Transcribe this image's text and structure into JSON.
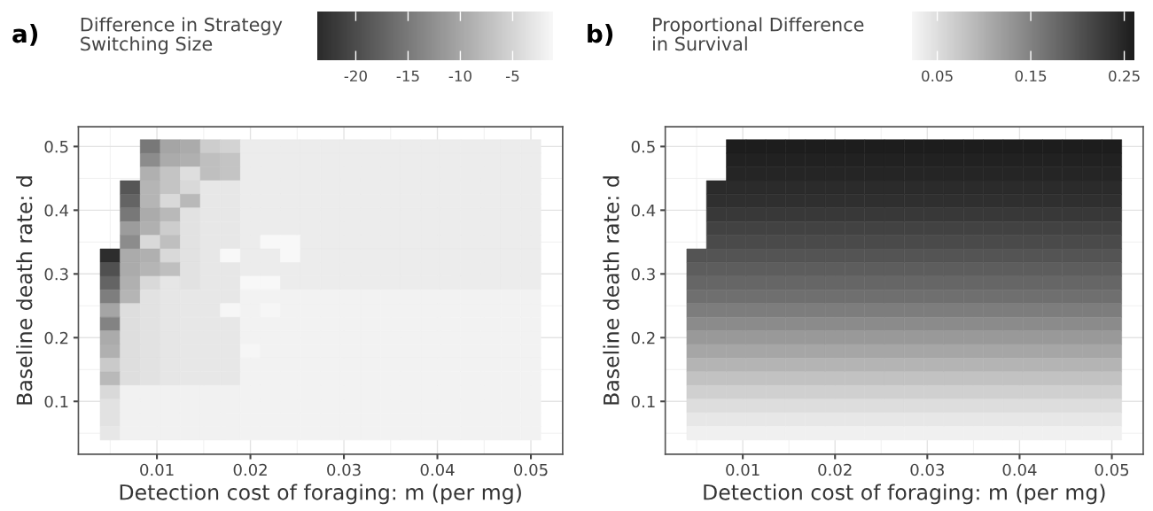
{
  "chart_data": [
    {
      "type": "heatmap",
      "title": "a)",
      "clabel": "Difference in Strategy\nSwitching Size",
      "xlabel": "Detection cost of foraging: m (per mg)",
      "ylabel": "Baseline death rate: d",
      "x": [
        0.005,
        0.00714,
        0.00929,
        0.01143,
        0.01357,
        0.01571,
        0.01786,
        0.02,
        0.02214,
        0.02429,
        0.02643,
        0.02857,
        0.03071,
        0.03286,
        0.035,
        0.03714,
        0.03929,
        0.04143,
        0.04357,
        0.04571,
        0.04786,
        0.05
      ],
      "y": [
        0.5,
        0.4786,
        0.4571,
        0.4357,
        0.4143,
        0.3929,
        0.3714,
        0.35,
        0.3286,
        0.3071,
        0.2857,
        0.2643,
        0.2429,
        0.2214,
        0.2,
        0.1786,
        0.1571,
        0.1357,
        0.1143,
        0.0929,
        0.0714,
        0.05
      ],
      "cells": [
        [
          null,
          null,
          -15.2,
          -10.2,
          -9.6,
          -5.8,
          -5.2,
          -2.5,
          -2.5,
          -2.5,
          -2.5,
          -2.5,
          -2.5,
          -2.5,
          -2.5,
          -2.5,
          -2.5,
          -2.5,
          -2.5,
          -2.5,
          -2.5,
          -2.5
        ],
        [
          null,
          null,
          -13,
          -9.6,
          -9,
          -7.4,
          -6.9,
          -2.5,
          -2.5,
          -2.5,
          -2.5,
          -2.5,
          -2.5,
          -2.5,
          -2.5,
          -2.5,
          -2.5,
          -2.5,
          -2.5,
          -2.5,
          -2.5,
          -2.5
        ],
        [
          null,
          null,
          -9,
          -6.9,
          -4,
          -7.4,
          -6.9,
          -2.5,
          -2.5,
          -2.5,
          -2.5,
          -2.5,
          -2.5,
          -2.5,
          -2.5,
          -2.5,
          -2.5,
          -2.5,
          -2.5,
          -2.5,
          -2.5,
          -2.5
        ],
        [
          null,
          -19,
          -8.5,
          -6.9,
          -4.6,
          -3,
          -3,
          -2.5,
          -2.5,
          -2.5,
          -2.5,
          -2.5,
          -2.5,
          -2.5,
          -2.5,
          -2.5,
          -2.5,
          -2.5,
          -2.5,
          -2.5,
          -2.5,
          -2.5
        ],
        [
          null,
          -17.4,
          -8.5,
          -4.6,
          -8,
          -3,
          -3,
          -2.5,
          -2.5,
          -2.5,
          -2.5,
          -2.5,
          -2.5,
          -2.5,
          -2.5,
          -2.5,
          -2.5,
          -2.5,
          -2.5,
          -2.5,
          -2.5,
          -2.5
        ],
        [
          null,
          -15.2,
          -9.6,
          -8,
          -3.5,
          -3,
          -3,
          -2.5,
          -2.5,
          -2.5,
          -2.5,
          -2.5,
          -2.5,
          -2.5,
          -2.5,
          -2.5,
          -2.5,
          -2.5,
          -2.5,
          -2.5,
          -2.5,
          -2.5
        ],
        [
          null,
          -11.3,
          -9,
          -5.8,
          -3.5,
          -3,
          -3,
          -2.5,
          -2.5,
          -2.5,
          -2.5,
          -2.5,
          -2.5,
          -2.5,
          -2.5,
          -2.5,
          -2.5,
          -2.5,
          -2.5,
          -2.5,
          -2.5,
          -2.5
        ],
        [
          null,
          -13,
          -4.6,
          -7.4,
          -3.5,
          -3,
          -3,
          -2.5,
          -1.1,
          -1.1,
          -2.5,
          -2.5,
          -2.5,
          -2.5,
          -2.5,
          -2.5,
          -2.5,
          -2.5,
          -2.5,
          -2.5,
          -2.5,
          -2.5
        ],
        [
          -23.5,
          -9.6,
          -9,
          -4.6,
          -3.5,
          -3,
          -1.1,
          -2.5,
          -2.5,
          -1.1,
          -2.5,
          -2.5,
          -2.5,
          -2.5,
          -2.5,
          -2.5,
          -2.5,
          -2.5,
          -2.5,
          -2.5,
          -2.5,
          -2.5
        ],
        [
          -19.6,
          -9.6,
          -8.5,
          -7.4,
          -3.5,
          -3,
          -3,
          -2.5,
          -2.5,
          -2.5,
          -2.5,
          -2.5,
          -2.5,
          -2.5,
          -2.5,
          -2.5,
          -2.5,
          -2.5,
          -2.5,
          -2.5,
          -2.5,
          -2.5
        ],
        [
          -17.4,
          -9,
          -4.6,
          -3.2,
          -3.5,
          -3,
          -3,
          -1.1,
          -1.1,
          -2.5,
          -2.5,
          -2.5,
          -2.5,
          -2.5,
          -2.5,
          -2.5,
          -2.5,
          -2.5,
          -2.5,
          -2.5,
          -2.5,
          -2.5
        ],
        [
          -14.6,
          -8.5,
          -3.5,
          -3.2,
          -3,
          -3,
          -3,
          -1.8,
          -1.8,
          -1.8,
          -1.8,
          -1.8,
          -1.8,
          -1.8,
          -1.8,
          -1.8,
          -1.8,
          -1.8,
          -1.8,
          -1.8,
          -1.8,
          -1.8
        ],
        [
          -10.2,
          -4,
          -3.5,
          -3.2,
          -3,
          -3,
          -1.3,
          -1.8,
          -1.3,
          -1.8,
          -1.8,
          -1.8,
          -1.8,
          -1.8,
          -1.8,
          -1.8,
          -1.8,
          -1.8,
          -1.8,
          -1.8,
          -1.8,
          -1.8
        ],
        [
          -14,
          -4,
          -3.5,
          -3.2,
          -3,
          -3,
          -3,
          -1.8,
          -1.8,
          -1.8,
          -1.8,
          -1.8,
          -1.8,
          -1.8,
          -1.8,
          -1.8,
          -1.8,
          -1.8,
          -1.8,
          -1.8,
          -1.8,
          -1.8
        ],
        [
          -9.6,
          -4,
          -3.5,
          -3.2,
          -3,
          -3,
          -3,
          -1.8,
          -1.8,
          -1.8,
          -1.8,
          -1.8,
          -1.8,
          -1.8,
          -1.8,
          -1.8,
          -1.8,
          -1.8,
          -1.8,
          -1.8,
          -1.8,
          -1.8
        ],
        [
          -9,
          -4,
          -3.5,
          -3.2,
          -3,
          -3,
          -3,
          -1.3,
          -1.8,
          -1.8,
          -1.8,
          -1.8,
          -1.8,
          -1.8,
          -1.8,
          -1.8,
          -1.8,
          -1.8,
          -1.8,
          -1.8,
          -1.8,
          -1.8
        ],
        [
          -6.2,
          -4,
          -3.5,
          -3.2,
          -3,
          -3,
          -3,
          -1.8,
          -1.8,
          -1.8,
          -1.8,
          -1.8,
          -1.8,
          -1.8,
          -1.8,
          -1.8,
          -1.8,
          -1.8,
          -1.8,
          -1.8,
          -1.8,
          -1.8
        ],
        [
          -8,
          -4,
          -3.5,
          -3.2,
          -3,
          -3,
          -3,
          -1.8,
          -1.8,
          -1.8,
          -1.8,
          -1.8,
          -1.8,
          -1.8,
          -1.8,
          -1.8,
          -1.8,
          -1.8,
          -1.8,
          -1.8,
          -1.8,
          -1.8
        ],
        [
          -4.6,
          -1.9,
          -1.9,
          -1.9,
          -1.9,
          -1.9,
          -1.9,
          -1.8,
          -1.8,
          -1.8,
          -1.8,
          -1.8,
          -1.8,
          -1.8,
          -1.8,
          -1.8,
          -1.8,
          -1.8,
          -1.8,
          -1.8,
          -1.8,
          -1.8
        ],
        [
          -3.5,
          -1.9,
          -1.9,
          -1.9,
          -1.9,
          -1.9,
          -1.9,
          -1.8,
          -1.8,
          -1.8,
          -1.8,
          -1.8,
          -1.8,
          -1.8,
          -1.8,
          -1.8,
          -1.8,
          -1.8,
          -1.8,
          -1.8,
          -1.8,
          -1.8
        ],
        [
          -3.5,
          -1.9,
          -1.9,
          -1.9,
          -1.9,
          -1.9,
          -1.9,
          -1.8,
          -1.8,
          -1.8,
          -1.8,
          -1.8,
          -1.8,
          -1.8,
          -1.8,
          -1.8,
          -1.8,
          -1.8,
          -1.8,
          -1.8,
          -1.8,
          -1.8
        ],
        [
          -3,
          -1.9,
          -1.9,
          -1.9,
          -1.9,
          -1.9,
          -1.9,
          -1.8,
          -1.8,
          -1.8,
          -1.8,
          -1.8,
          -1.8,
          -1.8,
          -1.8,
          -1.8,
          -1.8,
          -1.8,
          -1.8,
          -1.8,
          -1.8,
          -1.8
        ]
      ],
      "colors": [
        "#2b2b2b",
        "#f8f8f8"
      ],
      "clim": [
        -23.7,
        -1.1
      ],
      "cticks": [
        -20,
        -15,
        -10,
        -5
      ],
      "xlim": [
        0.0016,
        0.0534
      ],
      "ylim": [
        0.017,
        0.531
      ],
      "xticks": [
        0.01,
        0.02,
        0.03,
        0.04,
        0.05
      ],
      "yticks": [
        0.1,
        0.2,
        0.3,
        0.4,
        0.5
      ],
      "grid": true
    },
    {
      "type": "heatmap",
      "title": "b)",
      "clabel": "Proportional Difference\nin Survival",
      "xlabel": "Detection cost of foraging: m (per mg)",
      "ylabel": "Baseline death rate: d",
      "x": [
        0.005,
        0.00714,
        0.00929,
        0.01143,
        0.01357,
        0.01571,
        0.01786,
        0.02,
        0.02214,
        0.02429,
        0.02643,
        0.02857,
        0.03071,
        0.03286,
        0.035,
        0.03714,
        0.03929,
        0.04143,
        0.04357,
        0.04571,
        0.04786,
        0.05
      ],
      "y": [
        0.5,
        0.4786,
        0.4571,
        0.4357,
        0.4143,
        0.3929,
        0.3714,
        0.35,
        0.3286,
        0.3071,
        0.2857,
        0.2643,
        0.2429,
        0.2214,
        0.2,
        0.1786,
        0.1571,
        0.1357,
        0.1143,
        0.0929,
        0.0714,
        0.05
      ],
      "cells": [
        [
          null,
          null,
          0.26,
          0.26,
          0.26,
          0.26,
          0.26,
          0.26,
          0.26,
          0.26,
          0.26,
          0.26,
          0.26,
          0.26,
          0.26,
          0.26,
          0.26,
          0.26,
          0.26,
          0.26,
          0.26,
          0.26
        ],
        [
          null,
          null,
          0.255,
          0.255,
          0.255,
          0.255,
          0.255,
          0.255,
          0.255,
          0.255,
          0.255,
          0.255,
          0.255,
          0.255,
          0.255,
          0.255,
          0.255,
          0.255,
          0.255,
          0.255,
          0.255,
          0.255
        ],
        [
          null,
          null,
          0.25,
          0.25,
          0.25,
          0.25,
          0.25,
          0.25,
          0.25,
          0.25,
          0.25,
          0.25,
          0.25,
          0.25,
          0.25,
          0.25,
          0.25,
          0.25,
          0.25,
          0.25,
          0.25,
          0.25
        ],
        [
          null,
          0.245,
          0.245,
          0.245,
          0.245,
          0.245,
          0.245,
          0.245,
          0.245,
          0.245,
          0.245,
          0.245,
          0.245,
          0.245,
          0.245,
          0.245,
          0.245,
          0.245,
          0.245,
          0.245,
          0.245,
          0.245
        ],
        [
          null,
          0.24,
          0.24,
          0.24,
          0.24,
          0.24,
          0.24,
          0.24,
          0.24,
          0.24,
          0.24,
          0.24,
          0.24,
          0.24,
          0.24,
          0.24,
          0.24,
          0.24,
          0.24,
          0.24,
          0.24,
          0.24
        ],
        [
          null,
          0.23,
          0.23,
          0.23,
          0.23,
          0.23,
          0.23,
          0.23,
          0.23,
          0.23,
          0.23,
          0.23,
          0.23,
          0.23,
          0.23,
          0.23,
          0.23,
          0.23,
          0.23,
          0.23,
          0.23,
          0.23
        ],
        [
          null,
          0.22,
          0.22,
          0.22,
          0.22,
          0.22,
          0.22,
          0.22,
          0.22,
          0.22,
          0.22,
          0.22,
          0.22,
          0.22,
          0.22,
          0.22,
          0.22,
          0.22,
          0.22,
          0.22,
          0.22,
          0.22
        ],
        [
          null,
          0.21,
          0.21,
          0.21,
          0.21,
          0.21,
          0.21,
          0.21,
          0.21,
          0.21,
          0.21,
          0.21,
          0.21,
          0.21,
          0.21,
          0.21,
          0.21,
          0.21,
          0.21,
          0.21,
          0.21,
          0.21
        ],
        [
          0.2,
          0.2,
          0.2,
          0.2,
          0.2,
          0.2,
          0.2,
          0.2,
          0.2,
          0.2,
          0.2,
          0.2,
          0.2,
          0.2,
          0.2,
          0.2,
          0.2,
          0.2,
          0.2,
          0.2,
          0.2,
          0.2
        ],
        [
          0.19,
          0.19,
          0.19,
          0.19,
          0.19,
          0.19,
          0.19,
          0.19,
          0.19,
          0.19,
          0.19,
          0.19,
          0.19,
          0.19,
          0.19,
          0.19,
          0.19,
          0.19,
          0.19,
          0.19,
          0.19,
          0.19
        ],
        [
          0.18,
          0.18,
          0.18,
          0.18,
          0.18,
          0.18,
          0.18,
          0.18,
          0.18,
          0.18,
          0.18,
          0.18,
          0.18,
          0.18,
          0.18,
          0.18,
          0.18,
          0.18,
          0.18,
          0.18,
          0.18,
          0.18
        ],
        [
          0.17,
          0.17,
          0.17,
          0.17,
          0.17,
          0.17,
          0.17,
          0.17,
          0.17,
          0.17,
          0.17,
          0.17,
          0.17,
          0.17,
          0.17,
          0.17,
          0.17,
          0.17,
          0.17,
          0.17,
          0.17,
          0.17
        ],
        [
          0.155,
          0.155,
          0.155,
          0.155,
          0.155,
          0.155,
          0.155,
          0.155,
          0.155,
          0.155,
          0.155,
          0.155,
          0.155,
          0.155,
          0.155,
          0.155,
          0.155,
          0.155,
          0.155,
          0.155,
          0.155,
          0.155
        ],
        [
          0.14,
          0.14,
          0.14,
          0.14,
          0.14,
          0.14,
          0.14,
          0.14,
          0.14,
          0.14,
          0.14,
          0.14,
          0.14,
          0.14,
          0.14,
          0.14,
          0.14,
          0.14,
          0.14,
          0.14,
          0.14,
          0.14
        ],
        [
          0.125,
          0.125,
          0.125,
          0.125,
          0.125,
          0.125,
          0.125,
          0.125,
          0.125,
          0.125,
          0.125,
          0.125,
          0.125,
          0.125,
          0.125,
          0.125,
          0.125,
          0.125,
          0.125,
          0.125,
          0.125,
          0.125
        ],
        [
          0.11,
          0.11,
          0.11,
          0.11,
          0.11,
          0.11,
          0.11,
          0.11,
          0.11,
          0.11,
          0.11,
          0.11,
          0.11,
          0.11,
          0.11,
          0.11,
          0.11,
          0.11,
          0.11,
          0.11,
          0.11,
          0.11
        ],
        [
          0.095,
          0.095,
          0.095,
          0.095,
          0.095,
          0.095,
          0.095,
          0.095,
          0.095,
          0.095,
          0.095,
          0.095,
          0.095,
          0.095,
          0.095,
          0.095,
          0.095,
          0.095,
          0.095,
          0.095,
          0.095,
          0.095
        ],
        [
          0.08,
          0.08,
          0.08,
          0.08,
          0.08,
          0.08,
          0.08,
          0.08,
          0.08,
          0.08,
          0.08,
          0.08,
          0.08,
          0.08,
          0.08,
          0.08,
          0.08,
          0.08,
          0.08,
          0.08,
          0.08,
          0.08
        ],
        [
          0.065,
          0.065,
          0.065,
          0.065,
          0.065,
          0.065,
          0.065,
          0.065,
          0.065,
          0.065,
          0.065,
          0.065,
          0.065,
          0.065,
          0.065,
          0.065,
          0.065,
          0.065,
          0.065,
          0.065,
          0.065,
          0.065
        ],
        [
          0.05,
          0.05,
          0.05,
          0.05,
          0.05,
          0.05,
          0.05,
          0.05,
          0.05,
          0.05,
          0.05,
          0.05,
          0.05,
          0.05,
          0.05,
          0.05,
          0.05,
          0.05,
          0.05,
          0.05,
          0.05,
          0.05
        ],
        [
          0.04,
          0.04,
          0.04,
          0.04,
          0.04,
          0.04,
          0.04,
          0.04,
          0.04,
          0.04,
          0.04,
          0.04,
          0.04,
          0.04,
          0.04,
          0.04,
          0.04,
          0.04,
          0.04,
          0.04,
          0.04,
          0.04
        ],
        [
          0.03,
          0.03,
          0.03,
          0.03,
          0.03,
          0.03,
          0.03,
          0.03,
          0.03,
          0.03,
          0.03,
          0.03,
          0.03,
          0.03,
          0.03,
          0.03,
          0.03,
          0.03,
          0.03,
          0.03,
          0.03,
          0.03
        ]
      ],
      "colors": [
        "#f6f6f6",
        "#1c1c1c"
      ],
      "clim": [
        0.023,
        0.261
      ],
      "cticks": [
        0.05,
        0.15,
        0.25
      ],
      "xlim": [
        0.0016,
        0.0534
      ],
      "ylim": [
        0.017,
        0.531
      ],
      "xticks": [
        0.01,
        0.02,
        0.03,
        0.04,
        0.05
      ],
      "yticks": [
        0.1,
        0.2,
        0.3,
        0.4,
        0.5
      ],
      "grid": true
    }
  ]
}
